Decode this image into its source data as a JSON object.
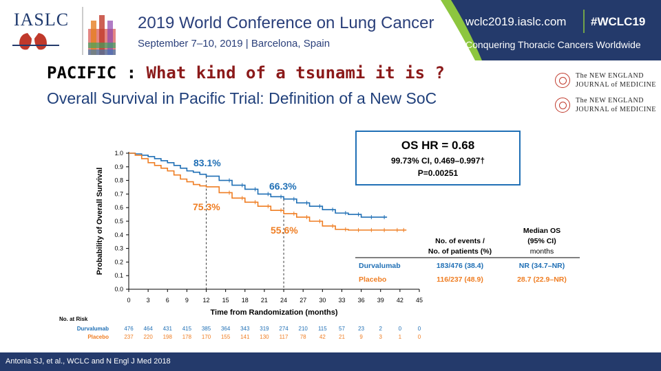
{
  "header": {
    "logo_text": "IASLC",
    "conference_title": "2019 World Conference on Lung Cancer",
    "conference_dates": "September 7–10, 2019 | Barcelona, Spain",
    "url": "wclc2019.iaslc.com",
    "hashtag": "#WCLC19",
    "slogan": "Conquering Thoracic Cancers Worldwide",
    "brand_blue": "#243a6b",
    "brand_green": "#8dc63f"
  },
  "slide": {
    "title_prefix": "PACIFIC :",
    "title_question": "What kind of a tsunami it is ?",
    "subtitle": "Overall Survival in Pacific Trial: Definition of a New SoC",
    "journal_badges": [
      {
        "line1": "The NEW ENGLAND",
        "line2": "JOURNAL of MEDICINE"
      },
      {
        "line1": "The NEW ENGLAND",
        "line2": "JOURNAL of MEDICINE"
      }
    ]
  },
  "hr_box": {
    "main": "OS HR = 0.68",
    "ci": "99.73% CI, 0.469–0.997†",
    "p": "P=0.00251"
  },
  "chart_data": {
    "type": "line",
    "xlabel": "Time from Randomization (months)",
    "ylabel": "Probability of Overall Survival",
    "xlim": [
      0,
      45
    ],
    "ylim": [
      0,
      1.0
    ],
    "x_ticks": [
      0,
      3,
      6,
      9,
      12,
      15,
      18,
      21,
      24,
      27,
      30,
      33,
      36,
      39,
      42,
      45
    ],
    "y_ticks": [
      "0.0",
      "0.1",
      "0.2",
      "0.3",
      "0.4",
      "0.5",
      "0.6",
      "0.7",
      "0.8",
      "0.9",
      "1.0"
    ],
    "grid": false,
    "series": [
      {
        "name": "Durvalumab",
        "color": "#1f6fb5",
        "x": [
          0,
          1,
          2,
          3,
          4,
          5,
          6,
          7,
          8,
          9,
          10,
          11,
          12,
          14,
          16,
          18,
          20,
          22,
          24,
          26,
          28,
          30,
          32,
          34,
          36,
          38,
          40
        ],
        "y": [
          1.0,
          0.995,
          0.985,
          0.975,
          0.96,
          0.945,
          0.93,
          0.91,
          0.89,
          0.87,
          0.86,
          0.845,
          0.831,
          0.8,
          0.765,
          0.735,
          0.7,
          0.68,
          0.663,
          0.635,
          0.61,
          0.585,
          0.56,
          0.55,
          0.53,
          0.53,
          0.53
        ]
      },
      {
        "name": "Placebo",
        "color": "#ef7d22",
        "x": [
          0,
          1,
          2,
          3,
          4,
          5,
          6,
          7,
          8,
          9,
          10,
          11,
          12,
          14,
          16,
          18,
          20,
          22,
          24,
          26,
          28,
          30,
          32,
          34,
          36,
          38,
          40,
          42,
          43
        ],
        "y": [
          1.0,
          0.985,
          0.96,
          0.93,
          0.91,
          0.89,
          0.87,
          0.84,
          0.81,
          0.79,
          0.77,
          0.76,
          0.753,
          0.71,
          0.67,
          0.64,
          0.61,
          0.58,
          0.556,
          0.53,
          0.5,
          0.465,
          0.44,
          0.435,
          0.435,
          0.435,
          0.435,
          0.435,
          0.435
        ]
      }
    ],
    "annotations": [
      {
        "text": "83.1%",
        "x": 12,
        "y": 0.831,
        "series": "Durvalumab"
      },
      {
        "text": "75.3%",
        "x": 12,
        "y": 0.753,
        "series": "Placebo"
      },
      {
        "text": "66.3%",
        "x": 24,
        "y": 0.663,
        "series": "Durvalumab"
      },
      {
        "text": "55.6%",
        "x": 24,
        "y": 0.556,
        "series": "Placebo"
      }
    ],
    "reference_lines_x": [
      12,
      24
    ],
    "summary_table": {
      "col_events": [
        "No. of events /",
        "No. of patients (%)"
      ],
      "col_median": [
        "Median OS",
        "(95% CI)",
        "months"
      ],
      "rows": [
        {
          "arm": "Durvalumab",
          "events": "183/476 (38.4)",
          "median": "NR (34.7–NR)",
          "color": "#1f6fb5"
        },
        {
          "arm": "Placebo",
          "events": "116/237 (48.9)",
          "median": "28.7 (22.9–NR)",
          "color": "#ef7d22"
        }
      ]
    },
    "at_risk": {
      "label": "No. at Risk",
      "rows": [
        {
          "arm": "Durvalumab",
          "values": [
            "476",
            "464",
            "431",
            "415",
            "385",
            "364",
            "343",
            "319",
            "274",
            "210",
            "115",
            "57",
            "23",
            "2",
            "0",
            "0"
          ]
        },
        {
          "arm": "Placebo",
          "values": [
            "237",
            "220",
            "198",
            "178",
            "170",
            "155",
            "141",
            "130",
            "117",
            "78",
            "42",
            "21",
            "9",
            "3",
            "1",
            "0"
          ]
        }
      ]
    }
  },
  "footer": {
    "citation": "Antonia SJ, et al., WCLC  and N Engl J Med 2018"
  }
}
